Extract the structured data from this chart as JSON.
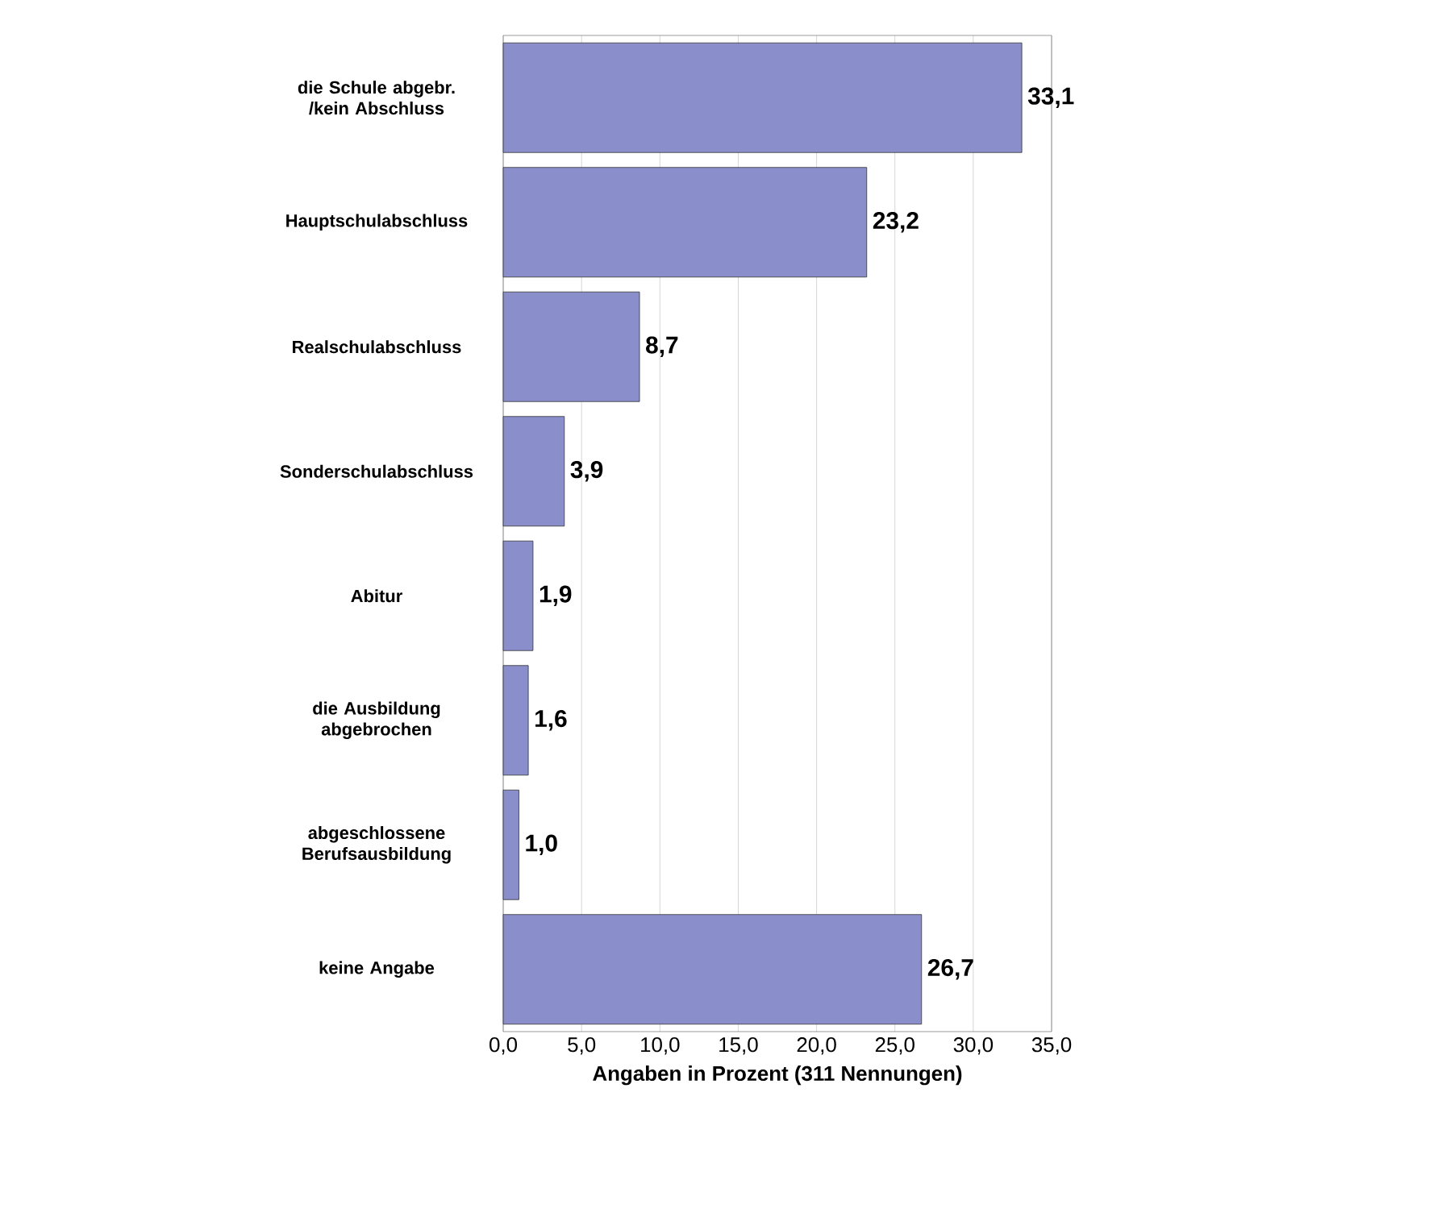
{
  "chart_data": {
    "type": "bar",
    "orientation": "horizontal",
    "xlabel": "Angaben in Prozent (311 Nennungen)",
    "categories": [
      "die Schule abgebr. /kein Abschluss",
      "Hauptschulabschluss",
      "Realschulabschluss",
      "Sonderschulabschluss",
      "Abitur",
      "die Ausbildung abgebrochen",
      "abgeschlossene Berufsausbildung",
      "keine Angabe"
    ],
    "values": [
      33.1,
      23.2,
      8.7,
      3.9,
      1.9,
      1.6,
      1.0,
      26.7
    ],
    "value_labels": [
      "33,1",
      "23,2",
      "8,7",
      "3,9",
      "1,9",
      "1,6",
      "1,0",
      "26,7"
    ],
    "color": "#8a8ecb",
    "xlim": [
      0,
      35
    ],
    "xticks": [
      {
        "value": 0,
        "label": "0,0"
      },
      {
        "value": 5,
        "label": "5,0"
      },
      {
        "value": 10,
        "label": "10,0"
      },
      {
        "value": 15,
        "label": "15,0"
      },
      {
        "value": 20,
        "label": "20,0"
      },
      {
        "value": 25,
        "label": "25,0"
      },
      {
        "value": 30,
        "label": "30,0"
      },
      {
        "value": 35,
        "label": "35,0"
      }
    ],
    "grid": "x"
  }
}
